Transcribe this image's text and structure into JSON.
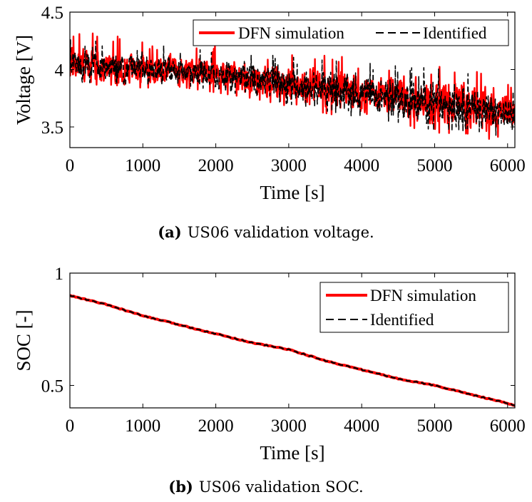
{
  "chart_data": [
    {
      "type": "line",
      "id": "a",
      "xlabel": "Time [s]",
      "ylabel": "Voltage [V]",
      "xlim": [
        0,
        6100
      ],
      "ylim": [
        3.32,
        4.5
      ],
      "xticks": [
        0,
        1000,
        2000,
        3000,
        4000,
        5000,
        6000
      ],
      "yticks": [
        3.5,
        4,
        4.5
      ],
      "xtick_labels": [
        "0",
        "1000",
        "2000",
        "3000",
        "4000",
        "5000",
        "6000"
      ],
      "ytick_labels": [
        "3.5",
        "4",
        "4.5"
      ],
      "legend_position": "top-right",
      "legend_layout": "horizontal",
      "grid": false,
      "series": [
        {
          "name": "DFN simulation",
          "color": "#ff0000",
          "style": "solid",
          "x": [
            0,
            500,
            1000,
            1500,
            2000,
            2500,
            3000,
            3500,
            4000,
            4500,
            5000,
            5500,
            6000,
            6100
          ],
          "y": [
            4.05,
            4.03,
            4.01,
            4.0,
            3.97,
            3.93,
            3.88,
            3.84,
            3.8,
            3.76,
            3.72,
            3.68,
            3.62,
            3.61
          ],
          "band_lower": [
            3.86,
            3.87,
            3.84,
            3.85,
            3.8,
            3.75,
            3.68,
            3.62,
            3.56,
            3.52,
            3.45,
            3.44,
            3.35,
            3.36
          ],
          "band_upper": [
            4.34,
            4.3,
            4.26,
            4.24,
            4.22,
            4.18,
            4.15,
            4.12,
            4.1,
            4.08,
            4.06,
            4.0,
            3.87,
            3.83
          ]
        },
        {
          "name": "Identified",
          "color": "#000000",
          "style": "dashed",
          "x": [
            0,
            500,
            1000,
            1500,
            2000,
            2500,
            3000,
            3500,
            4000,
            4500,
            5000,
            5500,
            6000,
            6100
          ],
          "y": [
            4.04,
            4.02,
            4.0,
            3.99,
            3.96,
            3.92,
            3.87,
            3.83,
            3.79,
            3.75,
            3.71,
            3.67,
            3.61,
            3.6
          ],
          "band_lower": [
            3.88,
            3.89,
            3.86,
            3.87,
            3.82,
            3.77,
            3.7,
            3.64,
            3.58,
            3.54,
            3.47,
            3.46,
            3.37,
            3.38
          ],
          "band_upper": [
            4.28,
            4.25,
            4.22,
            4.2,
            4.18,
            4.14,
            4.11,
            4.08,
            4.06,
            4.03,
            4.01,
            3.96,
            3.83,
            3.8
          ]
        }
      ]
    },
    {
      "type": "line",
      "id": "b",
      "xlabel": "Time [s]",
      "ylabel": "SOC [-]",
      "xlim": [
        0,
        6100
      ],
      "ylim": [
        0.4,
        1.0
      ],
      "xticks": [
        0,
        1000,
        2000,
        3000,
        4000,
        5000,
        6000
      ],
      "yticks": [
        0.5,
        1
      ],
      "xtick_labels": [
        "0",
        "1000",
        "2000",
        "3000",
        "4000",
        "5000",
        "6000"
      ],
      "ytick_labels": [
        "0.5",
        "1"
      ],
      "legend_position": "top-right",
      "legend_layout": "vertical",
      "grid": false,
      "series": [
        {
          "name": "DFN simulation",
          "color": "#ff0000",
          "style": "solid",
          "x": [
            0,
            500,
            1000,
            1500,
            2000,
            2500,
            3000,
            3500,
            4000,
            4500,
            5000,
            5500,
            6000,
            6100
          ],
          "y": [
            0.9,
            0.86,
            0.81,
            0.77,
            0.73,
            0.69,
            0.66,
            0.61,
            0.57,
            0.53,
            0.5,
            0.46,
            0.42,
            0.41
          ]
        },
        {
          "name": "Identified",
          "color": "#000000",
          "style": "dashed",
          "x": [
            0,
            500,
            1000,
            1500,
            2000,
            2500,
            3000,
            3500,
            4000,
            4500,
            5000,
            5500,
            6000,
            6100
          ],
          "y": [
            0.9,
            0.86,
            0.81,
            0.77,
            0.73,
            0.69,
            0.66,
            0.61,
            0.57,
            0.53,
            0.5,
            0.46,
            0.42,
            0.41
          ]
        }
      ]
    }
  ],
  "captions": {
    "a": {
      "tag": "(a)",
      "text": "US06 validation voltage."
    },
    "b": {
      "tag": "(b)",
      "text": "US06 validation SOC."
    }
  }
}
